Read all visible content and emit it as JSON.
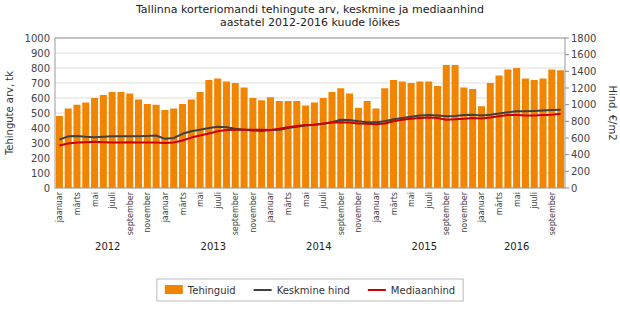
{
  "chart_data": {
    "type": "bar",
    "title": "Tallinna korteriomandi tehingute arv, keskmine ja mediaanhind\naastatel 2012-2016 kuude lõikes",
    "ylabel": "Tehingute arv, tk",
    "y2label": "Hind, €/m2",
    "categories": [
      "jaanuar",
      null,
      "märts",
      null,
      "mai",
      null,
      "juuli",
      null,
      "september",
      null,
      "november",
      null,
      "jaanuar",
      null,
      "märts",
      null,
      "mai",
      null,
      "juuli",
      null,
      "september",
      null,
      "november",
      null,
      "jaanuar",
      null,
      "märts",
      null,
      "mai",
      null,
      "juuli",
      null,
      "september",
      null,
      "november",
      null,
      "jaanuar",
      null,
      "märts",
      null,
      "mai",
      null,
      "juuli",
      null,
      "september",
      null,
      "november",
      null,
      "jaanuar",
      null,
      "märts",
      null,
      "mai",
      null,
      "juuli",
      null,
      "september",
      null
    ],
    "series": [
      {
        "name": "Tehinguid",
        "type": "bar",
        "color": "#F28500",
        "values": [
          480,
          530,
          555,
          570,
          600,
          620,
          640,
          640,
          630,
          590,
          560,
          555,
          520,
          530,
          560,
          590,
          640,
          720,
          730,
          710,
          700,
          670,
          600,
          585,
          605,
          580,
          580,
          580,
          550,
          570,
          600,
          640,
          665,
          630,
          535,
          580,
          530,
          665,
          720,
          710,
          700,
          710,
          710,
          680,
          820,
          820,
          670,
          660,
          545,
          700,
          750,
          790,
          800,
          730,
          720,
          730,
          790,
          785
        ]
      },
      {
        "name": "Keskmine hind",
        "type": "line",
        "axis": "y2",
        "color": "#404040",
        "values": [
          580,
          620,
          625,
          615,
          610,
          615,
          620,
          620,
          620,
          620,
          625,
          630,
          590,
          600,
          650,
          680,
          700,
          720,
          735,
          730,
          710,
          700,
          690,
          685,
          695,
          700,
          720,
          735,
          750,
          760,
          770,
          790,
          820,
          815,
          800,
          790,
          790,
          800,
          825,
          840,
          855,
          870,
          875,
          870,
          860,
          865,
          875,
          880,
          870,
          880,
          895,
          910,
          920,
          920,
          925,
          930,
          935,
          940
        ]
      },
      {
        "name": "Mediaanhind",
        "type": "line",
        "axis": "y2",
        "color": "#CC0000",
        "values": [
          510,
          535,
          545,
          550,
          555,
          550,
          545,
          545,
          550,
          545,
          545,
          545,
          540,
          545,
          570,
          605,
          630,
          655,
          680,
          695,
          700,
          700,
          700,
          700,
          695,
          710,
          730,
          745,
          755,
          760,
          775,
          785,
          790,
          785,
          775,
          770,
          765,
          775,
          800,
          820,
          830,
          840,
          845,
          840,
          820,
          825,
          830,
          840,
          835,
          845,
          860,
          875,
          875,
          870,
          870,
          875,
          880,
          890
        ]
      }
    ],
    "annotations": [
      {
        "text": "2012",
        "x": 5.5
      },
      {
        "text": "2013",
        "x": 17.5
      },
      {
        "text": "2014",
        "x": 29.5
      },
      {
        "text": "2015",
        "x": 41.5
      },
      {
        "text": "2016",
        "x": 52.0
      }
    ],
    "ylim": [
      0,
      1000
    ],
    "yticks": [
      0,
      100,
      200,
      300,
      400,
      500,
      600,
      700,
      800,
      900,
      1000
    ],
    "y2lim": [
      0,
      1800
    ],
    "y2ticks": [
      0,
      200,
      400,
      600,
      800,
      1000,
      1200,
      1400,
      1600,
      1800
    ],
    "grid": true,
    "legend": "bottom"
  }
}
